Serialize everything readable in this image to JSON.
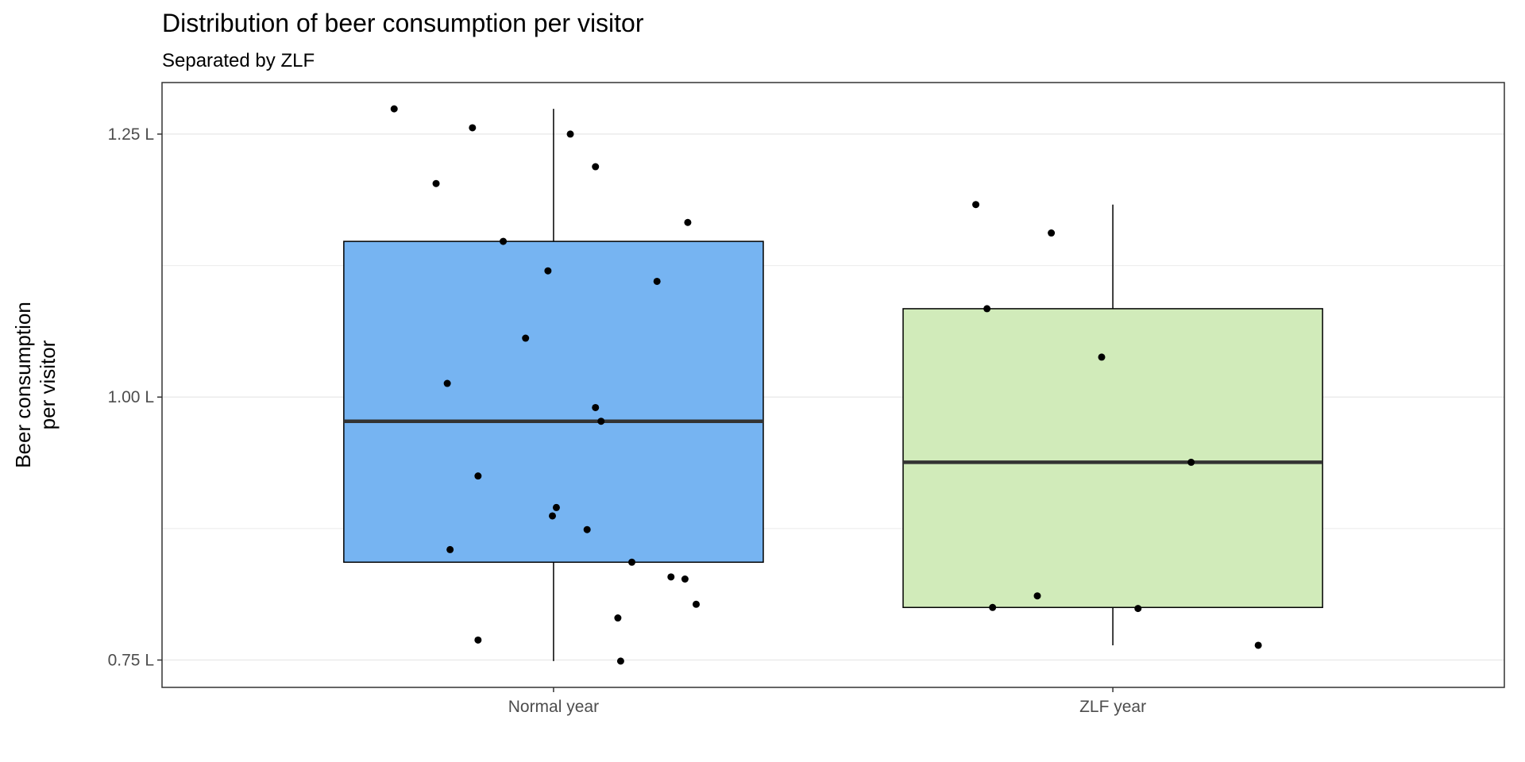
{
  "chart_data": {
    "type": "boxplot",
    "title": "Distribution of beer consumption per visitor",
    "subtitle": "Separated by ZLF",
    "xlabel": "",
    "ylabel": "Beer consumption\nper visitor",
    "categories": [
      "Normal year",
      "ZLF year"
    ],
    "ylim": [
      0.724,
      1.299
    ],
    "y_ticks": [
      {
        "value": 0.75,
        "label": "0.75 L"
      },
      {
        "value": 1.0,
        "label": "1.00 L"
      },
      {
        "value": 1.25,
        "label": "1.25 L"
      }
    ],
    "y_minor_ticks": [
      0.875,
      1.125
    ],
    "grid": true,
    "colors": {
      "Normal year": "#76b4f2",
      "ZLF year": "#d1ebba",
      "median": "#333333",
      "grid": "#ebebeb",
      "points": "#000000"
    },
    "boxes": [
      {
        "category": "Normal year",
        "whisker_low": 0.749,
        "q1": 0.843,
        "median": 0.977,
        "q3": 1.148,
        "whisker_high": 1.274
      },
      {
        "category": "ZLF year",
        "whisker_low": 0.764,
        "q1": 0.8,
        "median": 0.938,
        "q3": 1.084,
        "whisker_high": 1.183
      }
    ],
    "points": [
      {
        "category": "Normal year",
        "points": [
          {
            "jitter": -0.285,
            "y": 1.274
          },
          {
            "jitter": -0.145,
            "y": 1.256
          },
          {
            "jitter": 0.03,
            "y": 1.25
          },
          {
            "jitter": 0.075,
            "y": 1.219
          },
          {
            "jitter": -0.21,
            "y": 1.203
          },
          {
            "jitter": 0.24,
            "y": 1.166
          },
          {
            "jitter": -0.09,
            "y": 1.148
          },
          {
            "jitter": -0.01,
            "y": 1.12
          },
          {
            "jitter": 0.185,
            "y": 1.11
          },
          {
            "jitter": -0.05,
            "y": 1.056
          },
          {
            "jitter": -0.19,
            "y": 1.013
          },
          {
            "jitter": 0.075,
            "y": 0.99
          },
          {
            "jitter": 0.085,
            "y": 0.977
          },
          {
            "jitter": -0.135,
            "y": 0.925
          },
          {
            "jitter": 0.005,
            "y": 0.895
          },
          {
            "jitter": -0.002,
            "y": 0.887
          },
          {
            "jitter": 0.06,
            "y": 0.874
          },
          {
            "jitter": -0.185,
            "y": 0.855
          },
          {
            "jitter": 0.14,
            "y": 0.843
          },
          {
            "jitter": 0.21,
            "y": 0.829
          },
          {
            "jitter": 0.235,
            "y": 0.827
          },
          {
            "jitter": 0.255,
            "y": 0.803
          },
          {
            "jitter": 0.115,
            "y": 0.79
          },
          {
            "jitter": -0.135,
            "y": 0.769
          },
          {
            "jitter": 0.12,
            "y": 0.749
          }
        ]
      },
      {
        "category": "ZLF year",
        "points": [
          {
            "jitter": -0.245,
            "y": 1.183
          },
          {
            "jitter": -0.11,
            "y": 1.156
          },
          {
            "jitter": -0.225,
            "y": 1.084
          },
          {
            "jitter": -0.02,
            "y": 1.038
          },
          {
            "jitter": 0.14,
            "y": 0.938
          },
          {
            "jitter": -0.135,
            "y": 0.811
          },
          {
            "jitter": -0.215,
            "y": 0.8
          },
          {
            "jitter": 0.045,
            "y": 0.799
          },
          {
            "jitter": 0.26,
            "y": 0.764
          }
        ]
      }
    ]
  }
}
